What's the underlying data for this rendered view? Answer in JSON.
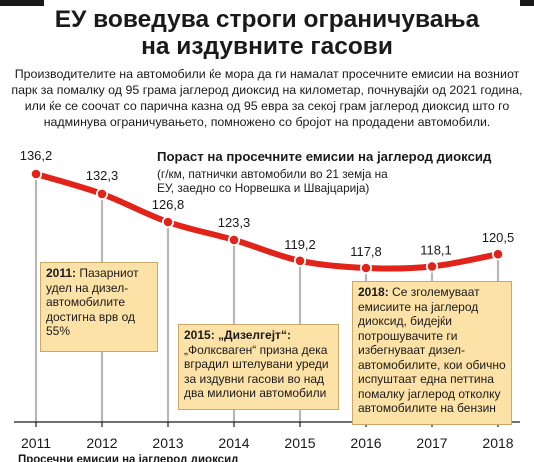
{
  "header": {
    "title_line1": "ЕУ воведува строги ограничувања",
    "title_line2": "на издувните гасови",
    "lead": "Производителите на автомобили ќе мора да ги намалат просечните емисии на возниот парк за помалку од 95 грама јаглерод диоксид на километар, почнувајќи од 2021 година, или ќе се соочат со парична казна од 95 евра за секој грам јаглерод диоксид што го надминува ограничувањето, помножено со бројот на продадени автомобили."
  },
  "colors": {
    "line": "#e2231a",
    "marker_fill": "#e2231a",
    "marker_stroke": "#ffffff",
    "guide": "#b7b7b7",
    "note_bg": "#fce2a6",
    "note_border": "#caa868",
    "axis": "#1a1a1a"
  },
  "chart_data": {
    "type": "line",
    "title": "Пораст на просечните емисии на јаглерод диоксид",
    "subtitle": "(г/км, патнички автомобили во 21 земја на ЕУ, заедно со Норвешка и Швајцарија)",
    "x": [
      "2011",
      "2012",
      "2013",
      "2014",
      "2015",
      "2016",
      "2017",
      "2018"
    ],
    "series": [
      {
        "values": [
          136.2,
          132.3,
          126.8,
          123.3,
          119.2,
          117.8,
          118.1,
          120.5
        ]
      }
    ],
    "value_labels": [
      "136,2",
      "132,3",
      "126,8",
      "123,3",
      "119,2",
      "117,8",
      "118,1",
      "120,5"
    ],
    "ylim": [
      115,
      138
    ],
    "grid": false,
    "annotations": [
      {
        "x": "2011",
        "label": "2011:",
        "text": "Пазарниот удел на дизел-автомобилите достигна врв од 55%"
      },
      {
        "x": "2015",
        "label": "2015: „Дизелгејт“:",
        "text": "„Фолксваген“ призна дека вградил штелувани уреди за издувни гасови во над два милиони автомобили"
      },
      {
        "x": "2018",
        "label": "2018:",
        "text": "Се зголемуваат емисиите на јаглерод диоксид, бидејќи потрошувачите ги избегнуваат дизел-автомобилите, кои обично испуштаат една петтина помалку јаглерод отколку автомобилите на бензин"
      }
    ]
  },
  "footer": {
    "cut_text": "Просечни емисии на јаглерод диоксид"
  }
}
